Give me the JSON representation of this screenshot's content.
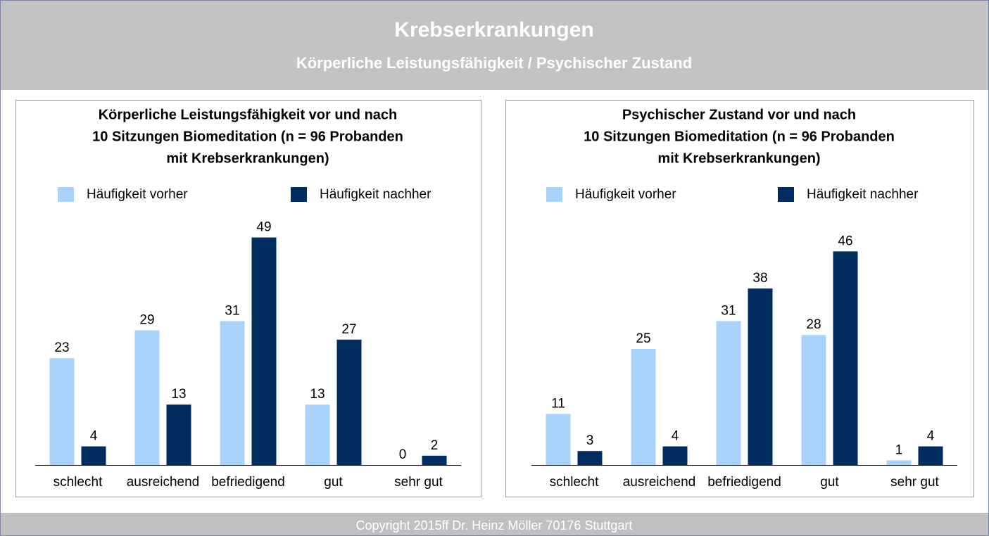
{
  "header": {
    "title": "Krebserkrankungen",
    "subtitle": "Körperliche Leistungsfähigkeit / Psychischer Zustand"
  },
  "footer": "Copyright 2015ff Dr. Heinz Möller 70176 Stuttgart",
  "chart_data": [
    {
      "type": "bar",
      "title": [
        "Körperliche Leistungsfähigkeit vor und nach",
        "10 Sitzungen Biomeditation (n = 96 Probanden",
        "mit Krebserkrankungen)"
      ],
      "categories": [
        "schlecht",
        "ausreichend",
        "befriedigend",
        "gut",
        "sehr gut"
      ],
      "series": [
        {
          "name": "Häufigkeit vorher",
          "color": "#a9d3fa",
          "values": [
            23,
            29,
            31,
            13,
            0
          ]
        },
        {
          "name": "Häufigkeit nachher",
          "color": "#002c5f",
          "values": [
            4,
            13,
            49,
            27,
            2
          ]
        }
      ],
      "ylim": [
        0,
        50
      ]
    },
    {
      "type": "bar",
      "title": [
        "Psychischer Zustand vor und nach",
        "10 Sitzungen Biomeditation (n = 96 Probanden",
        "mit Krebserkrankungen)"
      ],
      "categories": [
        "schlecht",
        "ausreichend",
        "befriedigend",
        "gut",
        "sehr gut"
      ],
      "series": [
        {
          "name": "Häufigkeit vorher",
          "color": "#a9d3fa",
          "values": [
            11,
            25,
            31,
            28,
            1
          ]
        },
        {
          "name": "Häufigkeit nachher",
          "color": "#002c5f",
          "values": [
            3,
            4,
            38,
            46,
            4
          ]
        }
      ],
      "ylim": [
        0,
        50
      ]
    }
  ]
}
